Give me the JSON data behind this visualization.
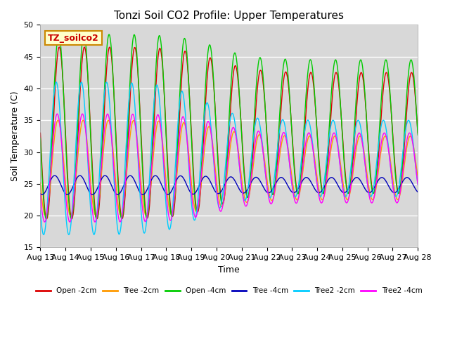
{
  "title": "Tonzi Soil CO2 Profile: Upper Temperatures",
  "xlabel": "Time",
  "ylabel": "Soil Temperature (C)",
  "ylim": [
    15,
    50
  ],
  "start_day": 13,
  "end_day": 28,
  "yticks": [
    15,
    20,
    25,
    30,
    35,
    40,
    45,
    50
  ],
  "background_color": "#ffffff",
  "plot_bg_color": "#d8d8d8",
  "annotation_text": "TZ_soilco2",
  "annotation_bg": "#ffffcc",
  "annotation_border": "#cc8800",
  "annotation_text_color": "#cc0000",
  "series": [
    {
      "label": "Open -2cm",
      "color": "#dd0000"
    },
    {
      "label": "Tree -2cm",
      "color": "#ff9900"
    },
    {
      "label": "Open -4cm",
      "color": "#00cc00"
    },
    {
      "label": "Tree -4cm",
      "color": "#0000bb"
    },
    {
      "label": "Tree2 -2cm",
      "color": "#00ccff"
    },
    {
      "label": "Tree2 -4cm",
      "color": "#ff00ff"
    }
  ],
  "grid_color": "#ffffff",
  "tick_label_fontsize": 8,
  "title_fontsize": 11,
  "label_fontsize": 9,
  "linewidth": 1.0
}
